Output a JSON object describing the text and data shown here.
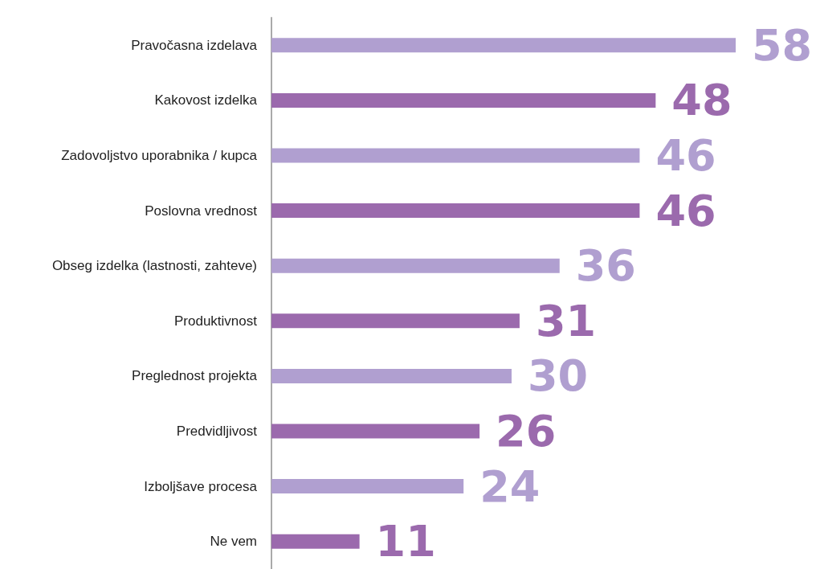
{
  "chart_data": {
    "type": "bar",
    "orientation": "horizontal",
    "data_labels": true,
    "categories": [
      "Pravočasna izdelava",
      "Kakovost izdelka",
      "Zadovoljstvo uporabnika / kupca",
      "Poslovna vrednost",
      "Obseg izdelka (lastnosti, zahteve)",
      "Produktivnost",
      "Preglednost projekta",
      "Predvidljivost",
      "Izboljšave procesa",
      "Ne vem"
    ],
    "values": [
      58,
      48,
      46,
      46,
      36,
      31,
      30,
      26,
      24,
      11
    ],
    "colors": [
      "#b09fd0",
      "#9b6aad",
      "#b09fd0",
      "#9b6aad",
      "#b09fd0",
      "#9b6aad",
      "#b09fd0",
      "#9b6aad",
      "#b09fd0",
      "#9b6aad"
    ],
    "grid": false
  }
}
